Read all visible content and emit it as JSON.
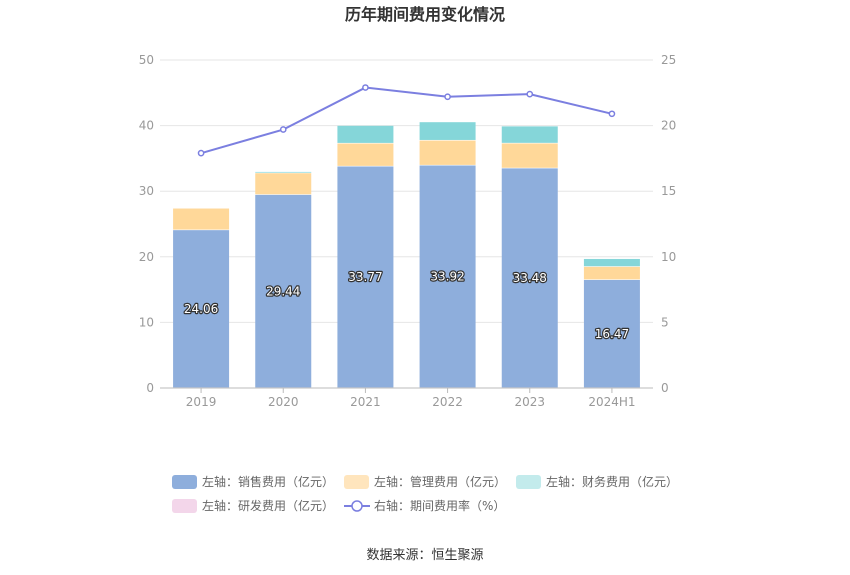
{
  "chart_data": {
    "type": "bar",
    "title": "历年期间费用变化情况",
    "categories": [
      "2019",
      "2020",
      "2021",
      "2022",
      "2023",
      "2024H1"
    ],
    "left_axis": {
      "ylim": [
        0,
        50
      ],
      "ticks": [
        "0",
        "10",
        "20",
        "30",
        "40",
        "50"
      ]
    },
    "right_axis": {
      "ylim": [
        0,
        25
      ],
      "ticks": [
        "0",
        "5",
        "10",
        "15",
        "20",
        "25"
      ]
    },
    "series": [
      {
        "name": "左轴：销售费用（亿元）",
        "type": "bar",
        "stack": "total",
        "axis": "left",
        "color": "#8eaedc",
        "values": [
          24.06,
          29.44,
          33.77,
          33.92,
          33.48,
          16.47
        ],
        "labels": [
          "24.06",
          "29.44",
          "33.77",
          "33.92",
          "33.48",
          "16.47"
        ]
      },
      {
        "name": "左轴：管理费用（亿元）",
        "type": "bar",
        "stack": "total",
        "axis": "left",
        "color": "#ffd899",
        "values": [
          3.3,
          3.3,
          3.5,
          3.8,
          3.8,
          2.0
        ]
      },
      {
        "name": "左轴：财务费用（亿元）",
        "type": "bar",
        "stack": "total",
        "axis": "left",
        "color": "#85d6d9",
        "values": [
          0.0,
          0.2,
          2.7,
          2.8,
          2.6,
          1.2
        ]
      },
      {
        "name": "左轴：研发费用（亿元）",
        "type": "bar",
        "stack": "total",
        "axis": "left",
        "color": "#f3d6ea",
        "values": [
          0,
          0,
          0,
          0,
          0,
          0
        ]
      },
      {
        "name": "右轴：期间费用率（%）",
        "type": "line",
        "axis": "right",
        "color": "#7b7fe0",
        "values": [
          17.9,
          19.7,
          22.9,
          22.2,
          22.4,
          20.9
        ]
      }
    ],
    "legend": {
      "position": "bottom",
      "items": [
        {
          "label": "左轴：销售费用（亿元）",
          "color": "#8eaedc",
          "shape": "bar"
        },
        {
          "label": "左轴：管理费用（亿元）",
          "color": "#ffe5bd",
          "shape": "bar"
        },
        {
          "label": "左轴：财务费用（亿元）",
          "color": "#c3ebec",
          "shape": "bar"
        },
        {
          "label": "左轴：研发费用（亿元）",
          "color": "#f3d6ea",
          "shape": "bar"
        },
        {
          "label": "右轴：期间费用率（%）",
          "color": "#7b7fe0",
          "shape": "line"
        }
      ]
    },
    "grid": true,
    "source": "数据来源：恒生聚源"
  }
}
